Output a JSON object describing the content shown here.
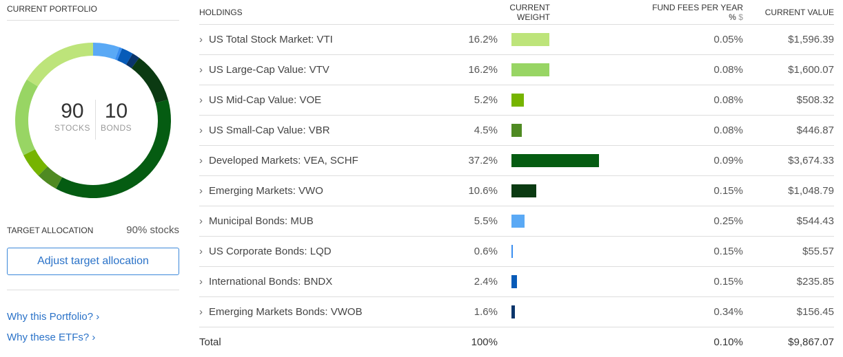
{
  "portfolio": {
    "title": "CURRENT PORTFOLIO",
    "stocks_value": "90",
    "stocks_label": "STOCKS",
    "bonds_value": "10",
    "bonds_label": "BONDS"
  },
  "target": {
    "label": "TARGET ALLOCATION",
    "value": "90% stocks",
    "button": "Adjust target allocation"
  },
  "links": [
    "Why this Portfolio? ›",
    "Why these ETFs? ›"
  ],
  "table": {
    "headers": {
      "holdings": "HOLDINGS",
      "weight": "CURRENT WEIGHT",
      "fees": "FUND FEES PER YEAR %",
      "fees_toggle": "$",
      "value": "CURRENT VALUE"
    },
    "rows": [
      {
        "name": "US Total Stock Market: VTI",
        "weight": "16.2%",
        "pct": 16.2,
        "fee": "0.05%",
        "value": "$1,596.39",
        "color": "#bde47a"
      },
      {
        "name": "US Large-Cap Value: VTV",
        "weight": "16.2%",
        "pct": 16.2,
        "fee": "0.08%",
        "value": "$1,600.07",
        "color": "#98d564"
      },
      {
        "name": "US Mid-Cap Value: VOE",
        "weight": "5.2%",
        "pct": 5.2,
        "fee": "0.08%",
        "value": "$508.32",
        "color": "#76b400"
      },
      {
        "name": "US Small-Cap Value: VBR",
        "weight": "4.5%",
        "pct": 4.5,
        "fee": "0.08%",
        "value": "$446.87",
        "color": "#4f8a22"
      },
      {
        "name": "Developed Markets: VEA, SCHF",
        "weight": "37.2%",
        "pct": 37.2,
        "fee": "0.09%",
        "value": "$3,674.33",
        "color": "#055c12"
      },
      {
        "name": "Emerging Markets: VWO",
        "weight": "10.6%",
        "pct": 10.6,
        "fee": "0.15%",
        "value": "$1,048.79",
        "color": "#0b3a12"
      },
      {
        "name": "Municipal Bonds: MUB",
        "weight": "5.5%",
        "pct": 5.5,
        "fee": "0.25%",
        "value": "$544.43",
        "color": "#5aa9f5"
      },
      {
        "name": "US Corporate Bonds: LQD",
        "weight": "0.6%",
        "pct": 0.6,
        "fee": "0.15%",
        "value": "$55.57",
        "color": "#3a8ef0"
      },
      {
        "name": "International Bonds: BNDX",
        "weight": "2.4%",
        "pct": 2.4,
        "fee": "0.15%",
        "value": "$235.85",
        "color": "#075bb8"
      },
      {
        "name": "Emerging Markets Bonds: VWOB",
        "weight": "1.6%",
        "pct": 1.6,
        "fee": "0.34%",
        "value": "$156.45",
        "color": "#0a356b"
      }
    ],
    "total": {
      "label": "Total",
      "weight": "100%",
      "fee": "0.10%",
      "value": "$9,867.07"
    }
  }
}
